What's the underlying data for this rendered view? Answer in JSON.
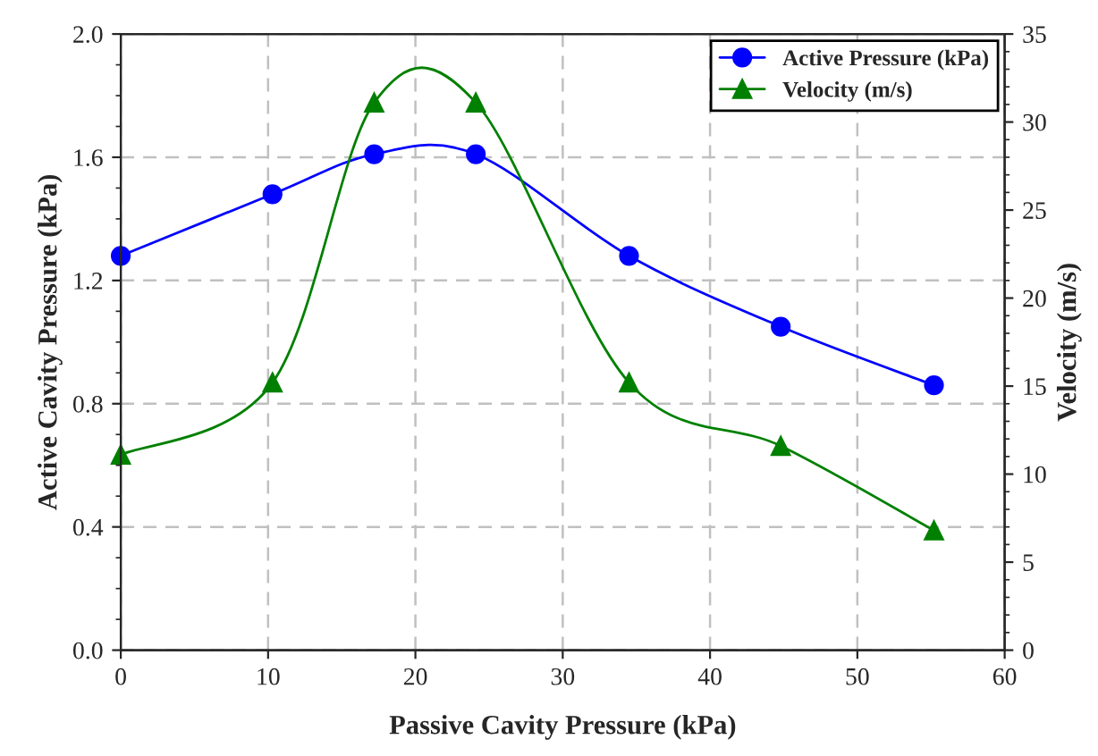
{
  "chart_data": {
    "type": "line",
    "xlabel": "Passive Cavity Pressure (kPa)",
    "ylabel": "Active Cavity Pressure (kPa)",
    "y2label": "Velocity (m/s)",
    "x": [
      0,
      10.3,
      17.2,
      24.1,
      34.5,
      44.8,
      55.2
    ],
    "series": [
      {
        "name": "Active Pressure (kPa)",
        "color": "#0000ff",
        "marker": "circle",
        "values": [
          1.28,
          1.48,
          1.61,
          1.61,
          1.28,
          1.05,
          0.86
        ]
      },
      {
        "name": "Velocity (m/s)",
        "color": "#008000",
        "marker": "triangle",
        "axis": "y2",
        "values": [
          11.1,
          15.2,
          31.1,
          31.1,
          15.2,
          11.6,
          6.8
        ]
      }
    ],
    "xlim": [
      0,
      60
    ],
    "xticks": [
      0,
      10,
      20,
      30,
      40,
      50,
      60
    ],
    "ylim": [
      0,
      2.0
    ],
    "yticks": [
      {
        "value": 0,
        "label": "0.0"
      },
      {
        "value": 0.4,
        "label": "0.4"
      },
      {
        "value": 0.8,
        "label": "0.8"
      },
      {
        "value": 1.2,
        "label": "1.2"
      },
      {
        "value": 1.6,
        "label": "1.6"
      },
      {
        "value": 2.0,
        "label": "2.0"
      }
    ],
    "y2lim": [
      0,
      35
    ],
    "y2ticks": [
      0,
      5,
      10,
      15,
      20,
      25,
      30,
      35
    ],
    "grid": true,
    "legend": "top right",
    "line_style": "solid"
  }
}
